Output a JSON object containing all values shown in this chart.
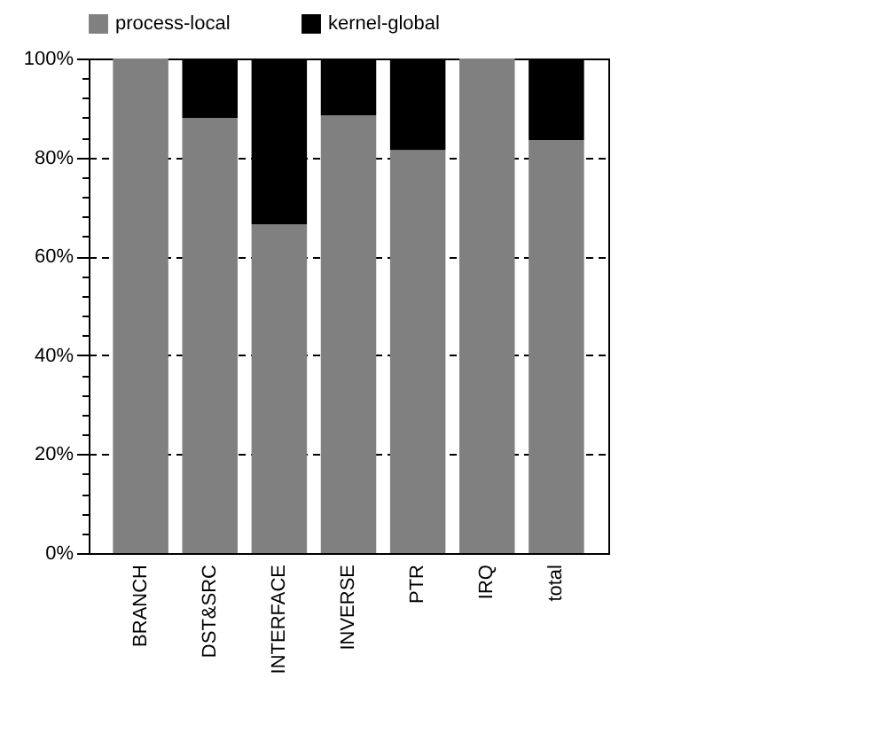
{
  "chart_data": {
    "type": "bar",
    "stacked": true,
    "categories": [
      "BRANCH",
      "DST&SRC",
      "INTERFACE",
      "INVERSE",
      "PTR",
      "IRQ",
      "total"
    ],
    "series": [
      {
        "name": "process-local",
        "color": "#808080",
        "values": [
          100,
          88,
          66.5,
          88.5,
          81.5,
          100,
          83.5
        ]
      },
      {
        "name": "kernel-global",
        "color": "#000000",
        "values": [
          0,
          12,
          33.5,
          11.5,
          18.5,
          0,
          16.5
        ]
      }
    ],
    "ylim": [
      0,
      100
    ],
    "yticks": [
      {
        "value": 0,
        "label": "0%"
      },
      {
        "value": 4,
        "label": null
      },
      {
        "value": 8,
        "label": null
      },
      {
        "value": 12,
        "label": null
      },
      {
        "value": 16,
        "label": null
      },
      {
        "value": 20,
        "label": "20%"
      },
      {
        "value": 24,
        "label": null
      },
      {
        "value": 28,
        "label": null
      },
      {
        "value": 32,
        "label": null
      },
      {
        "value": 36,
        "label": null
      },
      {
        "value": 40,
        "label": "40%"
      },
      {
        "value": 44,
        "label": null
      },
      {
        "value": 48,
        "label": null
      },
      {
        "value": 52,
        "label": null
      },
      {
        "value": 56,
        "label": null
      },
      {
        "value": 60,
        "label": "60%"
      },
      {
        "value": 64,
        "label": null
      },
      {
        "value": 68,
        "label": null
      },
      {
        "value": 72,
        "label": null
      },
      {
        "value": 76,
        "label": null
      },
      {
        "value": 80,
        "label": "80%"
      },
      {
        "value": 84,
        "label": null
      },
      {
        "value": 88,
        "label": null
      },
      {
        "value": 92,
        "label": null
      },
      {
        "value": 96,
        "label": null
      },
      {
        "value": 100,
        "label": "100%"
      }
    ],
    "grid": "y",
    "legend": "top"
  }
}
